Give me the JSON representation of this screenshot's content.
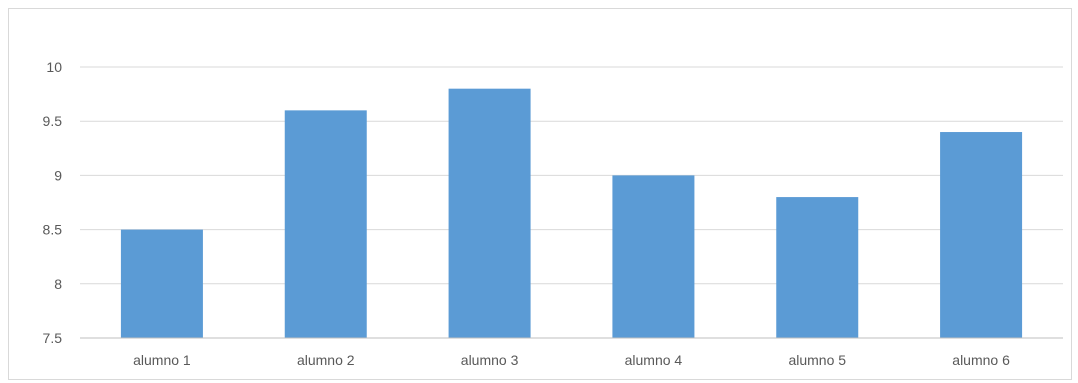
{
  "chart_data": {
    "type": "bar",
    "categories": [
      "alumno 1",
      "alumno 2",
      "alumno 3",
      "alumno 4",
      "alumno 5",
      "alumno 6"
    ],
    "values": [
      8.5,
      9.6,
      9.8,
      9.0,
      8.8,
      9.4
    ],
    "yticks": [
      "7.5",
      "8",
      "8.5",
      "9",
      "9.5",
      "10"
    ],
    "ylim": [
      7.5,
      10
    ],
    "grid": true,
    "colors": {
      "bar": "#5b9bd5",
      "grid": "#d9d9d9",
      "axis": "#bfbfbf",
      "text": "#595959"
    }
  }
}
